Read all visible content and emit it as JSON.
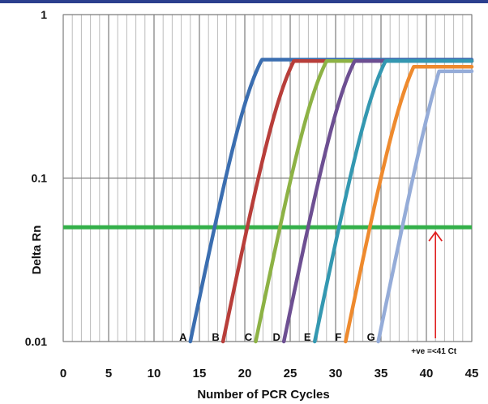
{
  "chart_data": {
    "type": "line",
    "title": "",
    "xlabel": "Number of PCR Cycles",
    "ylabel": "Delta Rn",
    "xlim": [
      0,
      45
    ],
    "ylim": [
      0.01,
      1
    ],
    "y_scale": "log",
    "x_ticks": [
      "0",
      "5",
      "10",
      "15",
      "20",
      "25",
      "30",
      "35",
      "40",
      "45"
    ],
    "y_ticks": [
      {
        "value": 1,
        "label": "1"
      },
      {
        "value": 0.1,
        "label": "0.1"
      },
      {
        "value": 0.01,
        "label": "0.01"
      }
    ],
    "grid": true,
    "threshold": {
      "value": 0.05,
      "color": "#34b04a"
    },
    "series": [
      {
        "name": "A",
        "color": "#3b6eb0",
        "start_cycle": 14.0,
        "midpoint": 21.2,
        "plateau": 0.53
      },
      {
        "name": "B",
        "color": "#b83e3a",
        "start_cycle": 17.6,
        "midpoint": 24.8,
        "plateau": 0.52
      },
      {
        "name": "C",
        "color": "#8db245",
        "start_cycle": 21.2,
        "midpoint": 28.4,
        "plateau": 0.52
      },
      {
        "name": "D",
        "color": "#6d4f92",
        "start_cycle": 24.3,
        "midpoint": 31.5,
        "plateau": 0.52
      },
      {
        "name": "E",
        "color": "#3498b1",
        "start_cycle": 27.7,
        "midpoint": 34.9,
        "plateau": 0.52
      },
      {
        "name": "F",
        "color": "#ee8a2e",
        "start_cycle": 31.1,
        "midpoint": 38.3,
        "plateau": 0.48
      },
      {
        "name": "G",
        "color": "#95acd8",
        "start_cycle": 34.7,
        "midpoint": 42.8,
        "plateau": 0.45
      }
    ],
    "annotation": {
      "text": "+ve =<41 Ct",
      "x": 41,
      "arrow_color": "#e02020"
    }
  }
}
